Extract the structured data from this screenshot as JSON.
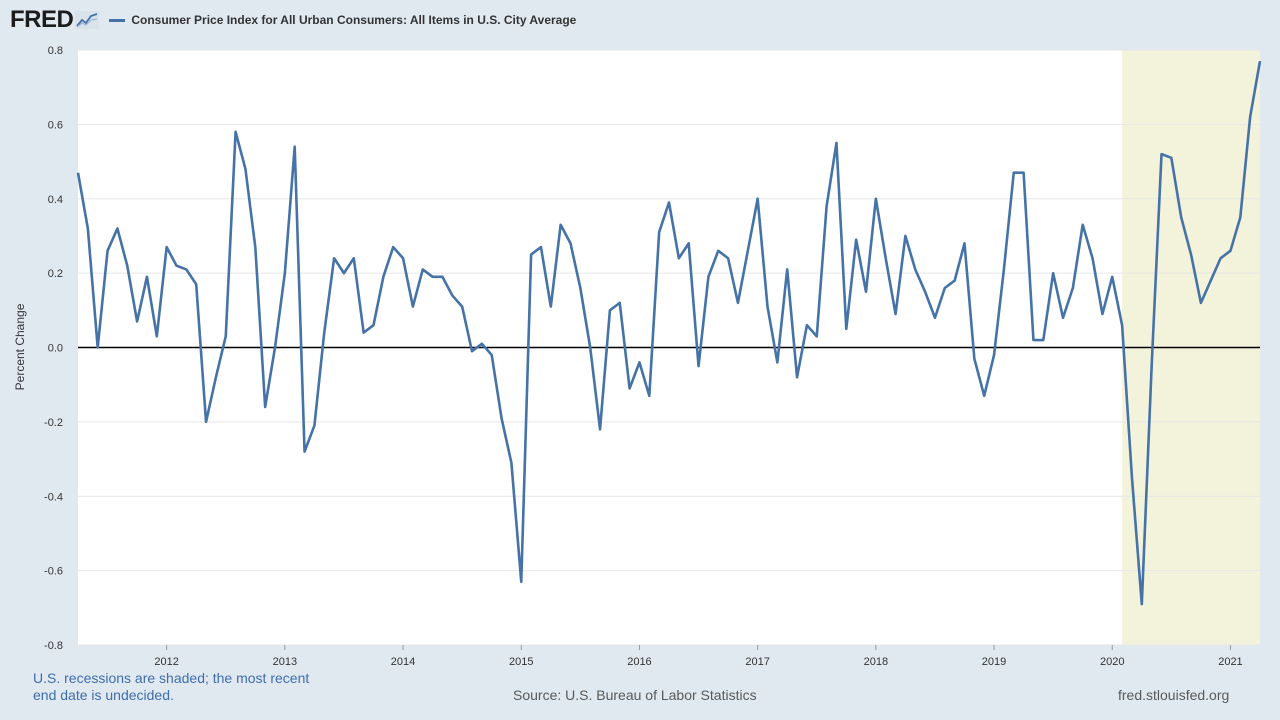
{
  "logo": {
    "text": "FRED",
    "icon": "chart-line-icon"
  },
  "legend": {
    "label": "Consumer Price Index for All Urban Consumers: All Items in U.S. City Average"
  },
  "footer": {
    "note": "U.S. recessions are shaded; the most recent end date is undecided.",
    "source": "Source: U.S. Bureau of Labor Statistics",
    "url": "fred.stlouisfed.org"
  },
  "colors": {
    "series": "#4572a7",
    "recession": "#f3f3dc",
    "background": "#e1e9f0",
    "plot": "#ffffff",
    "zero_line": "#000000"
  },
  "chart_data": {
    "type": "line",
    "title": "",
    "xlabel": "",
    "ylabel": "Percent Change",
    "ylim": [
      -0.8,
      0.8
    ],
    "yticks": [
      -0.8,
      -0.6,
      -0.4,
      -0.2,
      0.0,
      0.2,
      0.4,
      0.6,
      0.8
    ],
    "ytick_labels": [
      "-0.8",
      "-0.6",
      "-0.4",
      "-0.2",
      "0.0",
      "0.2",
      "0.4",
      "0.6",
      "0.8"
    ],
    "xlim": [
      "2011-04",
      "2021-04"
    ],
    "xticks": [
      "2012-01",
      "2013-01",
      "2014-01",
      "2015-01",
      "2016-01",
      "2017-01",
      "2018-01",
      "2019-01",
      "2020-01",
      "2021-01"
    ],
    "xtick_labels": [
      "2012",
      "2013",
      "2014",
      "2015",
      "2016",
      "2017",
      "2018",
      "2019",
      "2020",
      "2021"
    ],
    "grid": true,
    "recessions": [
      {
        "start": "2020-02",
        "end": "2021-04"
      }
    ],
    "series": [
      {
        "start": "2011-04",
        "frequency": "monthly",
        "values": [
          0.47,
          0.32,
          0.0,
          0.26,
          0.32,
          0.22,
          0.07,
          0.19,
          0.03,
          0.27,
          0.22,
          0.21,
          0.17,
          -0.2,
          -0.08,
          0.03,
          0.58,
          0.48,
          0.27,
          -0.16,
          0.0,
          0.2,
          0.54,
          -0.28,
          -0.21,
          0.04,
          0.24,
          0.2,
          0.24,
          0.04,
          0.06,
          0.19,
          0.27,
          0.24,
          0.11,
          0.21,
          0.19,
          0.19,
          0.14,
          0.11,
          -0.01,
          0.01,
          -0.02,
          -0.19,
          -0.31,
          -0.63,
          0.25,
          0.27,
          0.11,
          0.33,
          0.28,
          0.16,
          0.0,
          -0.22,
          0.1,
          0.12,
          -0.11,
          -0.04,
          -0.13,
          0.31,
          0.39,
          0.24,
          0.28,
          -0.05,
          0.19,
          0.26,
          0.24,
          0.12,
          0.26,
          0.4,
          0.11,
          -0.04,
          0.21,
          -0.08,
          0.06,
          0.03,
          0.38,
          0.55,
          0.05,
          0.29,
          0.15,
          0.4,
          0.24,
          0.09,
          0.3,
          0.21,
          0.15,
          0.08,
          0.16,
          0.18,
          0.28,
          -0.03,
          -0.13,
          -0.02,
          0.21,
          0.47,
          0.47,
          0.02,
          0.02,
          0.2,
          0.08,
          0.16,
          0.33,
          0.24,
          0.09,
          0.19,
          0.06,
          -0.35,
          -0.69,
          -0.05,
          0.52,
          0.51,
          0.35,
          0.25,
          0.12,
          0.18,
          0.24,
          0.26,
          0.35,
          0.62,
          0.77
        ]
      }
    ]
  }
}
